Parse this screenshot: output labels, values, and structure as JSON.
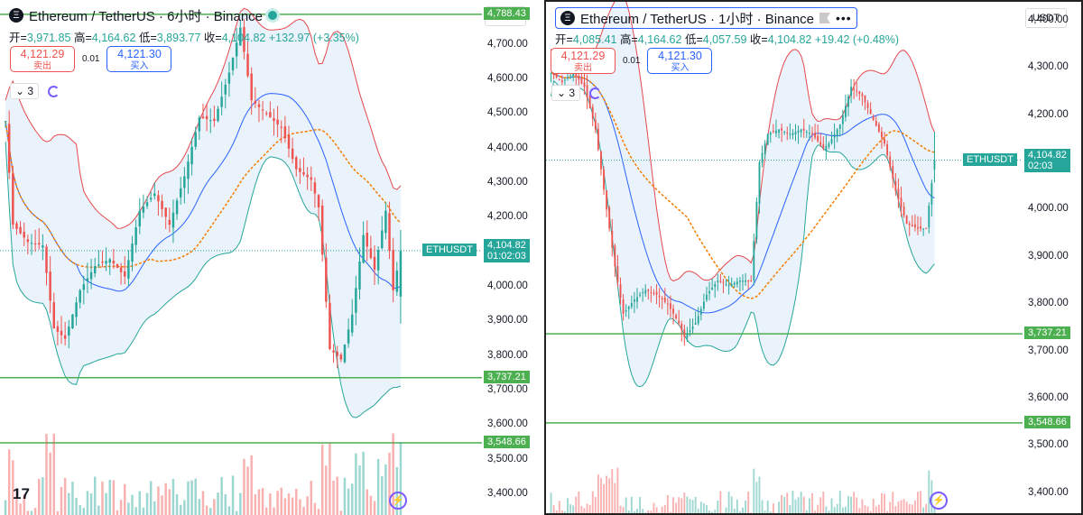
{
  "left": {
    "header": {
      "logo": "Ξ",
      "title": "Ethereum / TetherUS · 6小时 · Binance"
    },
    "ohlc": {
      "o_label": "开=",
      "o": "3,971.85",
      "h_label": "高=",
      "h": "4,164.62",
      "l_label": "低=",
      "l": "3,893.77",
      "c_label": "收=",
      "c": "4,104.82",
      "chg": "+132.97 (+3.35%)"
    },
    "sell": {
      "price": "4,121.29",
      "label": "卖出"
    },
    "buy": {
      "price": "4,121.30",
      "label": "买入"
    },
    "spread": "0.01",
    "indicators": "3",
    "currency": "USDT",
    "symbol": "ETHUSDT",
    "last_price": "4,104.82",
    "countdown": "01:02:03",
    "yaxis": {
      "min": 3340,
      "max": 4830,
      "ticks": [
        3400,
        3500,
        3600,
        3700,
        3800,
        3900,
        4000,
        4100,
        4200,
        4300,
        4400,
        4500,
        4600,
        4700
      ],
      "tick_labels": [
        "3,400.00",
        "3,500.00",
        "3,600.00",
        "3,700.00",
        "3,800.00",
        "3,900.00",
        "4,000.00",
        "4,100.00",
        "4,200.00",
        "4,300.00",
        "4,400.00",
        "4,500.00",
        "4,600.00",
        "4,700.00"
      ]
    },
    "hlines": [
      {
        "value": 4788.43,
        "label": "4,788.43"
      },
      {
        "value": 3737.21,
        "label": "3,737.21"
      },
      {
        "value": 3548.66,
        "label": "3,548.66"
      }
    ],
    "tv_logo": "17"
  },
  "right": {
    "header": {
      "logo": "Ξ",
      "title": "Ethereum / TetherUS · 1小时 · Binance"
    },
    "ohlc": {
      "o_label": "开=",
      "o": "4,085.41",
      "h_label": "高=",
      "h": "4,164.62",
      "l_label": "低=",
      "l": "4,057.59",
      "c_label": "收=",
      "c": "4,104.82",
      "chg": "+19.42 (+0.48%)"
    },
    "sell": {
      "price": "4,121.29",
      "label": "卖出"
    },
    "buy": {
      "price": "4,121.30",
      "label": "买入"
    },
    "spread": "0.01",
    "indicators": "3",
    "currency": "USDT",
    "symbol": "ETHUSDT",
    "last_price": "4,104.82",
    "countdown": "02:03",
    "yaxis": {
      "min": 3350,
      "max": 4440,
      "ticks": [
        3400,
        3500,
        3600,
        3700,
        3800,
        3900,
        4000,
        4100,
        4200,
        4300,
        4400
      ],
      "tick_labels": [
        "3,400.00",
        "3,500.00",
        "3,600.00",
        "3,700.00",
        "3,800.00",
        "3,900.00",
        "4,000.00",
        "4,100.00",
        "4,200.00",
        "4,300.00",
        "4,400.00"
      ]
    },
    "hlines": [
      {
        "value": 3737.21,
        "label": "3,737.21"
      },
      {
        "value": 3548.66,
        "label": "3,548.66"
      }
    ]
  },
  "colors": {
    "up": "#26a69a",
    "down": "#ef5350",
    "hline": "#4caf50",
    "bb_upper": "#e5484d",
    "bb_mid": "#2962ff",
    "bb_lower": "#26a69a",
    "ma": "#f57c00",
    "band_fill": "#e3effb",
    "accent": "#2962ff"
  },
  "chart_data": [
    {
      "type": "candlestick",
      "timeframe": "6小时",
      "symbol": "ETHUSDT",
      "ylim": [
        3340,
        4830
      ],
      "anchors": [
        [
          0,
          4480
        ],
        [
          2,
          4180
        ],
        [
          6,
          4130
        ],
        [
          10,
          4120
        ],
        [
          13,
          3880
        ],
        [
          16,
          3850
        ],
        [
          20,
          3990
        ],
        [
          24,
          4060
        ],
        [
          28,
          4080
        ],
        [
          32,
          4030
        ],
        [
          36,
          4220
        ],
        [
          40,
          4270
        ],
        [
          44,
          4180
        ],
        [
          48,
          4320
        ],
        [
          52,
          4490
        ],
        [
          56,
          4480
        ],
        [
          60,
          4620
        ],
        [
          63,
          4750
        ],
        [
          66,
          4540
        ],
        [
          70,
          4500
        ],
        [
          74,
          4460
        ],
        [
          78,
          4340
        ],
        [
          82,
          4310
        ],
        [
          84,
          4230
        ],
        [
          87,
          3820
        ],
        [
          90,
          3790
        ],
        [
          93,
          3920
        ],
        [
          96,
          4150
        ],
        [
          99,
          4050
        ],
        [
          102,
          4220
        ],
        [
          104,
          3990
        ],
        [
          106,
          4104.82
        ]
      ],
      "last": {
        "open": 3971.85,
        "high": 4164.62,
        "low": 3893.77,
        "close": 4104.82
      }
    },
    {
      "type": "candlestick",
      "timeframe": "1小时",
      "symbol": "ETHUSDT",
      "ylim": [
        3350,
        4440
      ],
      "anchors": [
        [
          0,
          4290
        ],
        [
          4,
          4270
        ],
        [
          8,
          4290
        ],
        [
          12,
          4260
        ],
        [
          16,
          4170
        ],
        [
          20,
          4000
        ],
        [
          23,
          3880
        ],
        [
          26,
          3780
        ],
        [
          30,
          3810
        ],
        [
          34,
          3830
        ],
        [
          38,
          3820
        ],
        [
          42,
          3800
        ],
        [
          46,
          3760
        ],
        [
          48,
          3730
        ],
        [
          52,
          3760
        ],
        [
          56,
          3820
        ],
        [
          60,
          3850
        ],
        [
          64,
          3840
        ],
        [
          68,
          3850
        ],
        [
          72,
          3850
        ],
        [
          75,
          4100
        ],
        [
          78,
          4160
        ],
        [
          82,
          4170
        ],
        [
          86,
          4160
        ],
        [
          90,
          4170
        ],
        [
          94,
          4160
        ],
        [
          98,
          4130
        ],
        [
          100,
          4140
        ],
        [
          104,
          4180
        ],
        [
          108,
          4260
        ],
        [
          112,
          4240
        ],
        [
          116,
          4190
        ],
        [
          120,
          4140
        ],
        [
          124,
          4040
        ],
        [
          128,
          3970
        ],
        [
          132,
          3960
        ],
        [
          135,
          3960
        ],
        [
          138,
          4104.82
        ]
      ],
      "last": {
        "open": 4085.41,
        "high": 4164.62,
        "low": 4057.59,
        "close": 4104.82
      }
    }
  ]
}
